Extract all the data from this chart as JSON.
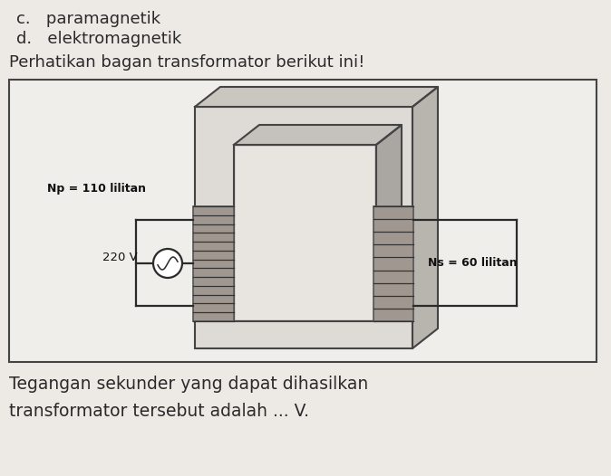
{
  "bg_color": "#edeae6",
  "text_color": "#2a2a2a",
  "title_line1": "paramagnetik",
  "label_d": "d.",
  "title_line2": "elektromagnetik",
  "question_text": "Perhatikan bagan transformator berikut ini!",
  "np_label": "Np = 110 lilitan",
  "voltage_label": "220 V",
  "ns_label": "Ns = 60 lilitan",
  "footer_line1": "Tegangan sekunder yang dapat dihasilkan",
  "footer_line2": "transformator tersebut adalah ... V.",
  "wire_color": "#2a2a2a",
  "core_face_color": "#d8d4ce",
  "core_top_color": "#c8c4be",
  "core_right_color": "#b8b4ae",
  "coil_fill_color": "#a8a09898",
  "inner_fill_color": "#dedad5",
  "diagram_bg": "#f0eeea"
}
